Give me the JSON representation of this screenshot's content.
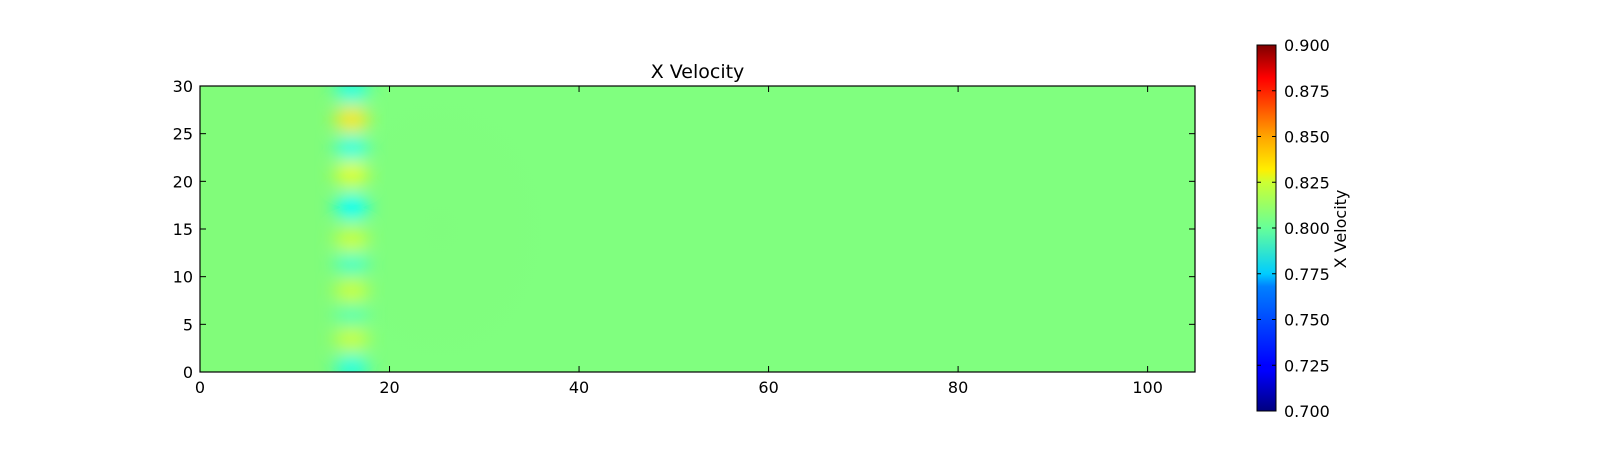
{
  "chart_data": {
    "type": "heatmap",
    "title": "X Velocity",
    "xlabel": "",
    "ylabel": "",
    "xlim": [
      0,
      105
    ],
    "ylim": [
      0,
      30
    ],
    "xticks": [
      0,
      20,
      40,
      60,
      80,
      100
    ],
    "yticks": [
      0,
      5,
      10,
      15,
      20,
      25,
      30
    ],
    "colormap": "jet",
    "background_value": 0.8,
    "features": [
      {
        "x": 16,
        "y": 0.5,
        "value": 0.78
      },
      {
        "x": 16,
        "y": 3.5,
        "value": 0.815
      },
      {
        "x": 16,
        "y": 6,
        "value": 0.79
      },
      {
        "x": 16,
        "y": 8.5,
        "value": 0.815
      },
      {
        "x": 16,
        "y": 11.5,
        "value": 0.785
      },
      {
        "x": 16,
        "y": 13.8,
        "value": 0.815
      },
      {
        "x": 16,
        "y": 17.3,
        "value": 0.775
      },
      {
        "x": 16,
        "y": 20.8,
        "value": 0.82
      },
      {
        "x": 16,
        "y": 23.5,
        "value": 0.78
      },
      {
        "x": 16,
        "y": 26.5,
        "value": 0.83
      },
      {
        "x": 16,
        "y": 29.5,
        "value": 0.78
      }
    ],
    "colorbar": {
      "label": "X Velocity",
      "min": 0.7,
      "max": 0.9,
      "ticks": [
        "0.700",
        "0.725",
        "0.750",
        "0.775",
        "0.800",
        "0.825",
        "0.850",
        "0.875",
        "0.900"
      ]
    }
  }
}
